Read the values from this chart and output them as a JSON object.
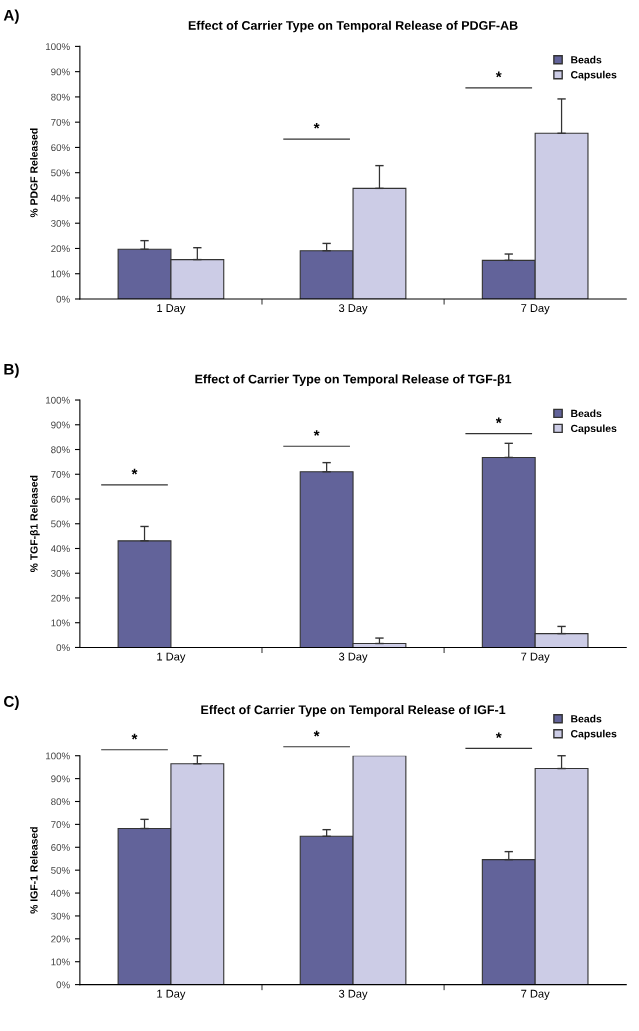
{
  "chart_data": [
    {
      "type": "bar",
      "title": "Effect of Carrier Type on Temporal Release of PDGF-AB",
      "ylabel": "% PDGF Released",
      "categories": [
        "1 Day",
        "3 Day",
        "7 Day"
      ],
      "series": [
        {
          "name": "Beads",
          "color": "#62639a",
          "values": [
            19.7,
            19.1,
            15.3
          ],
          "errors": [
            [
              19.7,
              23.1
            ],
            [
              19.1,
              22.0
            ],
            [
              15.3,
              17.8
            ]
          ]
        },
        {
          "name": "Capsules",
          "color": "#cccce6",
          "values": [
            15.6,
            43.8,
            65.6
          ],
          "errors": [
            [
              15.6,
              20.3
            ],
            [
              43.8,
              52.8
            ],
            [
              65.6,
              79.2
            ]
          ]
        }
      ],
      "ylim": [
        0,
        100
      ],
      "yticks": [
        {
          "value": 0,
          "label": "0%"
        },
        {
          "value": 10,
          "label": "10%"
        },
        {
          "value": 20,
          "label": "20%"
        },
        {
          "value": 30,
          "label": "30%"
        },
        {
          "value": 40,
          "label": "40%"
        },
        {
          "value": 50,
          "label": "50%"
        },
        {
          "value": 60,
          "label": "60%"
        },
        {
          "value": 70,
          "label": "70%"
        },
        {
          "value": 80,
          "label": "80%"
        },
        {
          "value": 90,
          "label": "90%"
        },
        {
          "value": 100,
          "label": "100%"
        }
      ],
      "legend": "top right",
      "grid": false,
      "annotations": [
        "A)",
        "*",
        "*"
      ]
    },
    {
      "type": "bar",
      "title": "Effect of Carrier Type on Temporal Release of TGF-β1",
      "ylabel": "% TGF-β1 Released",
      "categories": [
        "1 Day",
        "3 Day",
        "7 Day"
      ],
      "series": [
        {
          "name": "Beads",
          "color": "#62639a",
          "values": [
            43.1,
            71.0,
            76.8
          ],
          "errors": [
            [
              43.1,
              48.9
            ],
            [
              71.0,
              74.7
            ],
            [
              76.8,
              82.5
            ]
          ]
        },
        {
          "name": "Capsules",
          "color": "#cccce6",
          "values": [
            0,
            1.6,
            5.6
          ],
          "errors": [
            null,
            [
              1.6,
              3.8
            ],
            [
              5.6,
              8.5
            ]
          ]
        }
      ],
      "ylim": [
        0,
        100
      ],
      "yticks": [
        {
          "value": 0,
          "label": "0%"
        },
        {
          "value": 10,
          "label": "10%"
        },
        {
          "value": 20,
          "label": "20%"
        },
        {
          "value": 30,
          "label": "30%"
        },
        {
          "value": 40,
          "label": "40%"
        },
        {
          "value": 50,
          "label": "50%"
        },
        {
          "value": 60,
          "label": "60%"
        },
        {
          "value": 70,
          "label": "70%"
        },
        {
          "value": 80,
          "label": "80%"
        },
        {
          "value": 90,
          "label": "90%"
        },
        {
          "value": 100,
          "label": "100%"
        }
      ],
      "legend": "top right",
      "grid": false,
      "annotations": [
        "B)",
        "*",
        "*",
        "*"
      ]
    },
    {
      "type": "bar",
      "title": "Effect of Carrier Type on Temporal Release of IGF-1",
      "ylabel": "% IGF-1 Released",
      "categories": [
        "1 Day",
        "3 Day",
        "7 Day"
      ],
      "series": [
        {
          "name": "Beads",
          "color": "#62639a",
          "values": [
            68.2,
            64.8,
            54.6
          ],
          "errors": [
            [
              68.2,
              72.2
            ],
            [
              64.8,
              67.7
            ],
            [
              54.6,
              58.1
            ]
          ]
        },
        {
          "name": "Capsules",
          "color": "#cccce6",
          "values": [
            96.5,
            100,
            94.4
          ],
          "errors": [
            [
              96.5,
              100
            ],
            null,
            [
              94.4,
              100
            ]
          ]
        }
      ],
      "ylim": [
        0,
        100
      ],
      "yticks": [
        {
          "value": 0,
          "label": "0%"
        },
        {
          "value": 10,
          "label": "10%"
        },
        {
          "value": 20,
          "label": "20%"
        },
        {
          "value": 30,
          "label": "30%"
        },
        {
          "value": 40,
          "label": "40%"
        },
        {
          "value": 50,
          "label": "50%"
        },
        {
          "value": 60,
          "label": "60%"
        },
        {
          "value": 70,
          "label": "70%"
        },
        {
          "value": 80,
          "label": "80%"
        },
        {
          "value": 90,
          "label": "90%"
        },
        {
          "value": 100,
          "label": "100%"
        }
      ],
      "legend": "top right",
      "grid": false,
      "annotations": [
        "C)",
        "*",
        "*",
        "*"
      ]
    }
  ]
}
